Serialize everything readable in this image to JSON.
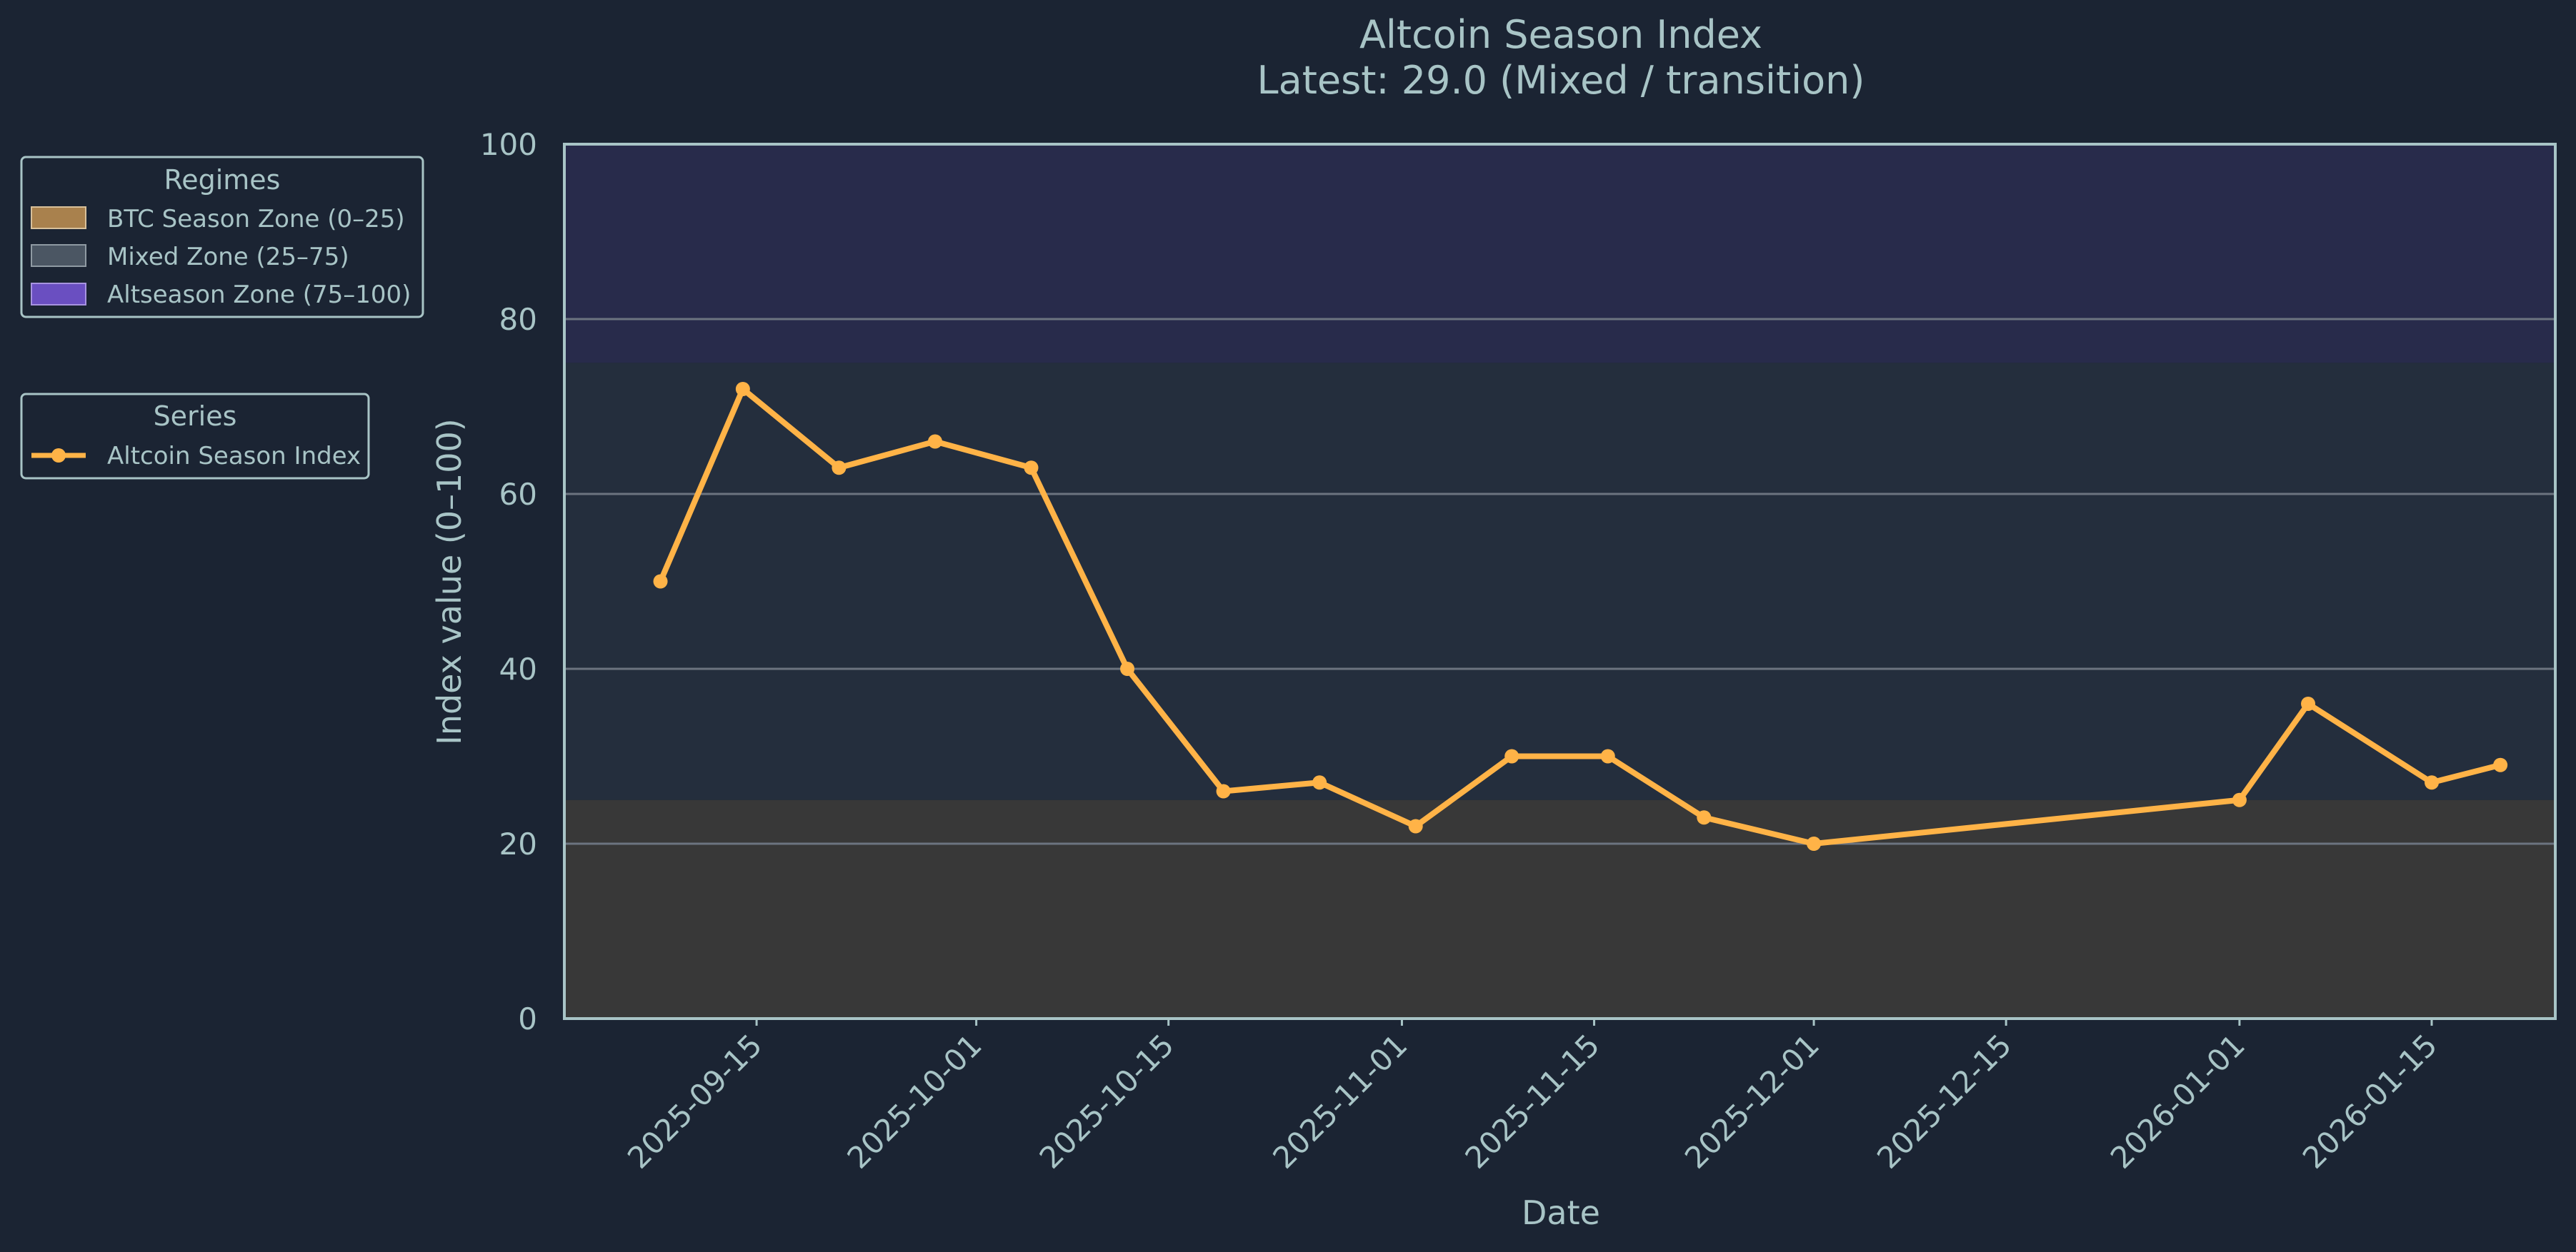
{
  "chart_data": {
    "type": "line",
    "title": "Altcoin Season Index",
    "subtitle": "Latest: 29.0 (Mixed / transition)",
    "xlabel": "Date",
    "ylabel": "Index value (0–100)",
    "ylim": [
      0,
      100
    ],
    "xlim": [
      "2025-09-01",
      "2026-01-24"
    ],
    "yticks": [
      0,
      20,
      40,
      60,
      80,
      100
    ],
    "xticks": [
      "2025-09-15",
      "2025-10-01",
      "2025-10-15",
      "2025-11-01",
      "2025-11-15",
      "2025-12-01",
      "2025-12-15",
      "2026-01-01",
      "2026-01-15"
    ],
    "grid": "horizontal",
    "zones": [
      {
        "name": "BTC Season Zone (0–25)",
        "from": 0,
        "to": 25,
        "color": "#a9814d"
      },
      {
        "name": "Mixed Zone (25–75)",
        "from": 25,
        "to": 75,
        "color": "#4b5663"
      },
      {
        "name": "Altseason Zone (75–100)",
        "from": 75,
        "to": 100,
        "color": "#6a4fc1"
      }
    ],
    "series": [
      {
        "name": "Altcoin Season Index",
        "color": "#ffb347",
        "x": [
          "2025-09-08",
          "2025-09-14",
          "2025-09-21",
          "2025-09-28",
          "2025-10-05",
          "2025-10-12",
          "2025-10-19",
          "2025-10-26",
          "2025-11-02",
          "2025-11-09",
          "2025-11-16",
          "2025-11-23",
          "2025-12-01",
          "2026-01-01",
          "2026-01-06",
          "2026-01-15",
          "2026-01-20"
        ],
        "y": [
          50,
          72,
          63,
          66,
          63,
          40,
          26,
          27,
          22,
          30,
          30,
          23,
          20,
          25,
          36,
          27,
          29
        ]
      }
    ],
    "legends": {
      "regimes_title": "Regimes",
      "series_title": "Series",
      "placement": "left"
    }
  }
}
